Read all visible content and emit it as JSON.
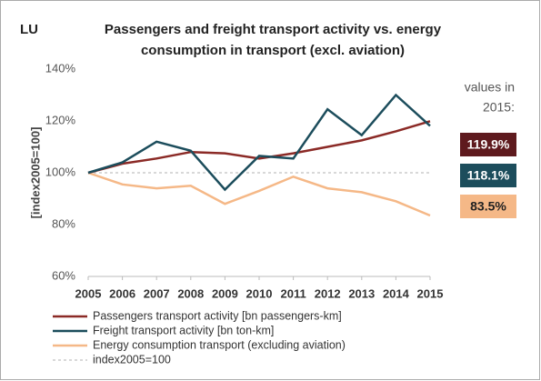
{
  "chart_data": {
    "type": "line",
    "country": "LU",
    "title": [
      "Passengers and freight transport activity vs. energy",
      "consumption in transport (excl. aviation)"
    ],
    "ylabel": "[index2005=100]",
    "note": [
      "values in",
      "2015:"
    ],
    "x": [
      2005,
      2006,
      2007,
      2008,
      2009,
      2010,
      2011,
      2012,
      2013,
      2014,
      2015
    ],
    "xlim": [
      2005,
      2015
    ],
    "xticks": [
      2005,
      2006,
      2007,
      2008,
      2009,
      2010,
      2011,
      2012,
      2013,
      2014,
      2015
    ],
    "ylim": [
      60,
      140
    ],
    "yticks": [
      {
        "value": 60,
        "label": "60%"
      },
      {
        "value": 80,
        "label": "80%"
      },
      {
        "value": 100,
        "label": "100%"
      },
      {
        "value": 120,
        "label": "120%"
      },
      {
        "value": 140,
        "label": "140%"
      }
    ],
    "grid": false,
    "series": [
      {
        "name": "Passengers transport activity [bn passengers-km]",
        "color": "#8b2a26",
        "label_color": "#5e1a1e",
        "values": [
          100,
          103.5,
          105.5,
          108,
          107.5,
          105.5,
          107.5,
          110,
          112.5,
          116,
          119.9
        ],
        "value_label": "119.9%"
      },
      {
        "name": "Freight transport activity [bn ton-km]",
        "color": "#1c4d5c",
        "label_color": "#1c4d5c",
        "values": [
          100,
          104,
          112,
          108.5,
          93.5,
          106.5,
          105.5,
          124.5,
          114.5,
          130,
          118.1
        ],
        "value_label": "118.1%"
      },
      {
        "name": "Energy consumption transport (excluding aviation)",
        "color": "#f5b887",
        "label_color": "#f5b887",
        "values": [
          100,
          95.5,
          94,
          95,
          88,
          93,
          98.5,
          94,
          92.5,
          89,
          83.5
        ],
        "value_label": "83.5%"
      }
    ],
    "reference_line": {
      "name": "index2005=100",
      "value": 100,
      "color": "#b0b0b0"
    }
  }
}
